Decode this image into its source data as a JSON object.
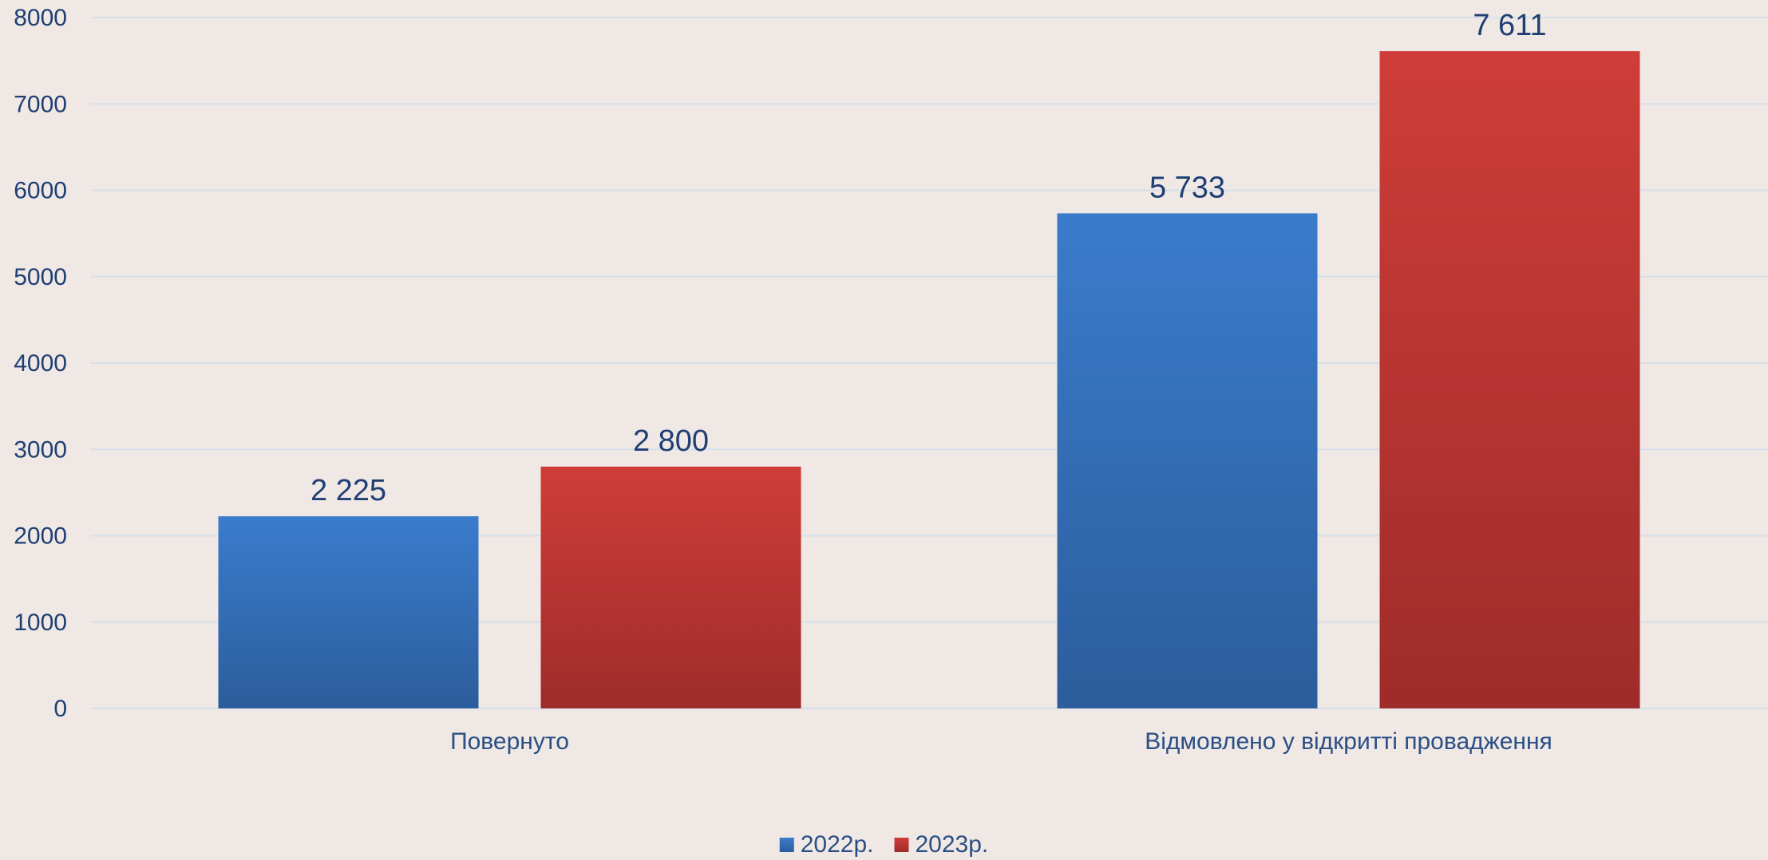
{
  "chart_data": {
    "type": "bar",
    "title": "",
    "xlabel": "",
    "ylabel": "",
    "categories": [
      "Повернуто",
      "Відмовлено у відкритті провадження"
    ],
    "series": [
      {
        "name": "2022р.",
        "color": "#3a7ccc",
        "color_dark": "#2c5d9c",
        "values": [
          2225,
          5733
        ],
        "labels": [
          "2 225",
          "5 733"
        ]
      },
      {
        "name": "2023р.",
        "color": "#cf3d38",
        "color_dark": "#9e2c2a",
        "values": [
          2800,
          7611
        ],
        "labels": [
          "2 800",
          "7 611"
        ]
      }
    ],
    "ylim": [
      0,
      8000
    ],
    "yticks": [
      0,
      1000,
      2000,
      3000,
      4000,
      5000,
      6000,
      7000,
      8000
    ],
    "grid": true,
    "legend_position": "bottom"
  }
}
